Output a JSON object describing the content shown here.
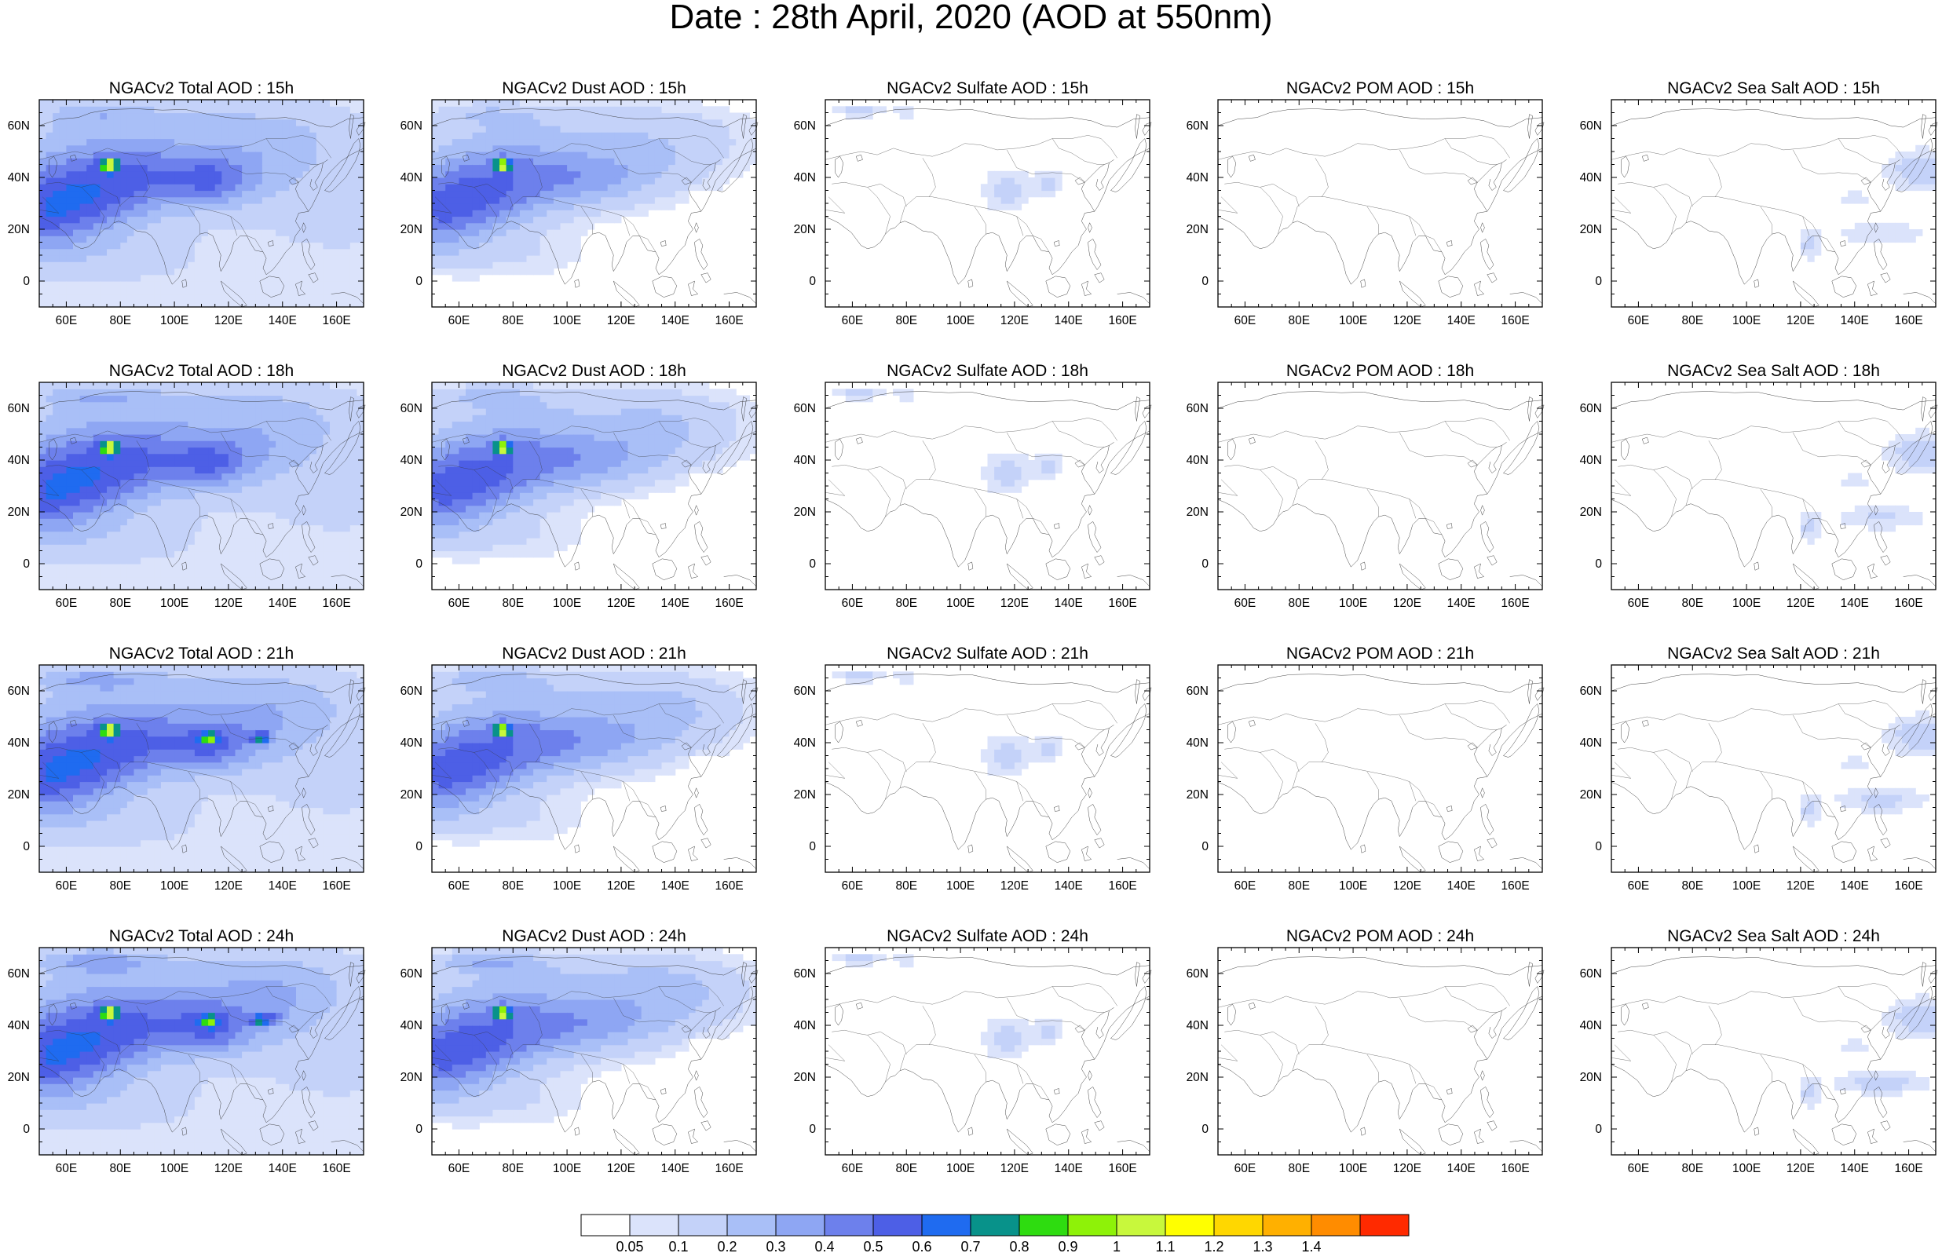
{
  "title": "Date : 28th April, 2020 (AOD at 550nm)",
  "panel_titles": [
    [
      "NGACv2 Total AOD : 15h",
      "NGACv2 Dust AOD : 15h",
      "NGACv2 Sulfate AOD : 15h",
      "NGACv2 POM AOD : 15h",
      "NGACv2 Sea Salt AOD : 15h"
    ],
    [
      "NGACv2 Total AOD : 18h",
      "NGACv2 Dust AOD : 18h",
      "NGACv2 Sulfate AOD : 18h",
      "NGACv2 POM AOD : 18h",
      "NGACv2 Sea Salt AOD : 18h"
    ],
    [
      "NGACv2 Total AOD : 21h",
      "NGACv2 Dust AOD : 21h",
      "NGACv2 Sulfate AOD : 21h",
      "NGACv2 POM AOD : 21h",
      "NGACv2 Sea Salt AOD : 21h"
    ],
    [
      "NGACv2 Total AOD : 24h",
      "NGACv2 Dust AOD : 24h",
      "NGACv2 Sulfate AOD : 24h",
      "NGACv2 POM AOD : 24h",
      "NGACv2 Sea Salt  AOD : 24h"
    ]
  ],
  "map": {
    "lon_range": [
      50,
      170
    ],
    "lat_range": [
      -10,
      70
    ],
    "lon_ticks": [
      "60E",
      "80E",
      "100E",
      "120E",
      "140E",
      "160E"
    ],
    "lat_ticks": [
      "60N",
      "40N",
      "20N",
      "0"
    ]
  },
  "colorbar": {
    "labels": [
      "0.05",
      "0.1",
      "0.2",
      "0.3",
      "0.4",
      "0.5",
      "0.6",
      "0.7",
      "0.8",
      "0.9",
      "1",
      "1.1",
      "1.2",
      "1.3",
      "1.4"
    ],
    "colors": [
      "#ffffff",
      "#dbe3fb",
      "#c4d2f9",
      "#a9bff7",
      "#8ea6f3",
      "#6d80ec",
      "#4d5fe6",
      "#1f6bf0",
      "#08928a",
      "#2edc10",
      "#8ef208",
      "#c8f83c",
      "#ffff00",
      "#ffd700",
      "#ffb000",
      "#ff8c00",
      "#ff2a00"
    ]
  }
}
